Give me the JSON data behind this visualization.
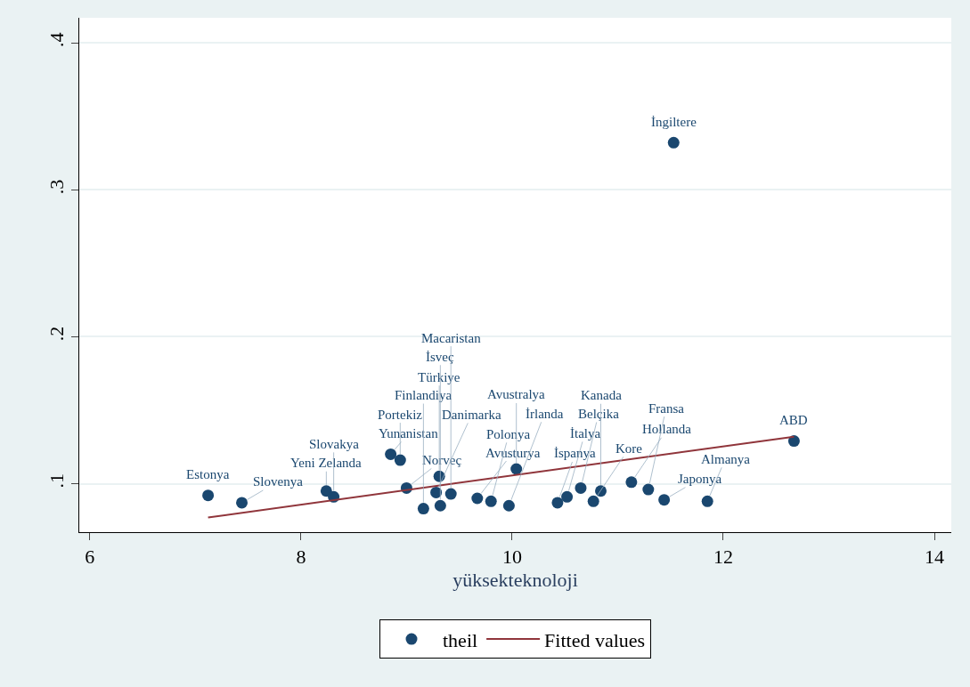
{
  "chart_data": {
    "type": "scatter",
    "xlabel": "yüksekteknoloji",
    "xlim": [
      5.9,
      14.16
    ],
    "xticks": [
      6,
      8,
      10,
      12,
      14
    ],
    "ylim": [
      0.067,
      0.417
    ],
    "yticks": [
      {
        "value": 0.1,
        "label": ".1"
      },
      {
        "value": 0.2,
        "label": ".2"
      },
      {
        "value": 0.3,
        "label": ".3"
      },
      {
        "value": 0.4,
        "label": ".4"
      }
    ],
    "grid": "y",
    "legend": "bottom",
    "series": [
      {
        "name": "theil",
        "marker": "circle",
        "color": "#1a476f",
        "x": [
          7.12,
          7.44,
          8.24,
          8.31,
          8.85,
          8.94,
          9.31,
          9.0,
          9.28,
          9.16,
          9.42,
          9.32,
          9.67,
          9.8,
          9.97,
          10.04,
          10.43,
          10.52,
          10.65,
          10.77,
          10.84,
          11.13,
          11.29,
          11.44,
          11.53,
          11.85,
          12.67
        ],
        "values": [
          0.092,
          0.087,
          0.095,
          0.091,
          0.12,
          0.116,
          0.105,
          0.097,
          0.094,
          0.083,
          0.093,
          0.085,
          0.09,
          0.088,
          0.085,
          0.11,
          0.087,
          0.091,
          0.097,
          0.088,
          0.095,
          0.101,
          0.096,
          0.089,
          0.332,
          0.088,
          0.129
        ]
      },
      {
        "name": "Fitted values",
        "type": "line",
        "color": "#90353b",
        "x": [
          7.12,
          12.67
        ],
        "values": [
          0.077,
          0.132
        ]
      }
    ],
    "annotations": [
      {
        "text": "Estonya",
        "x": 7.12,
        "y": 0.092
      },
      {
        "text": "Slovenya",
        "x": 7.44,
        "y": 0.087
      },
      {
        "text": "Yeni Zelanda",
        "x": 8.24,
        "y": 0.095
      },
      {
        "text": "Slovakya",
        "x": 8.31,
        "y": 0.091
      },
      {
        "text": "Yunanistan",
        "x": 8.85,
        "y": 0.12
      },
      {
        "text": "Portekiz",
        "x": 8.94,
        "y": 0.116
      },
      {
        "text": "Türkiye",
        "x": 9.31,
        "y": 0.105
      },
      {
        "text": "Norveç",
        "x": 9.0,
        "y": 0.097
      },
      {
        "text": "Danimarka",
        "x": 9.28,
        "y": 0.094
      },
      {
        "text": "Finlandiya",
        "x": 9.16,
        "y": 0.083
      },
      {
        "text": "Macaristan",
        "x": 9.42,
        "y": 0.093
      },
      {
        "text": "İsveç",
        "x": 9.32,
        "y": 0.085
      },
      {
        "text": "Avusturya",
        "x": 9.67,
        "y": 0.09
      },
      {
        "text": "Polonya",
        "x": 9.8,
        "y": 0.088
      },
      {
        "text": "İrlanda",
        "x": 9.97,
        "y": 0.085
      },
      {
        "text": "Avustralya",
        "x": 10.04,
        "y": 0.11
      },
      {
        "text": "İspanya",
        "x": 10.43,
        "y": 0.087
      },
      {
        "text": "İtalya",
        "x": 10.52,
        "y": 0.091
      },
      {
        "text": "Belçika",
        "x": 10.65,
        "y": 0.097
      },
      {
        "text": "Kore",
        "x": 10.77,
        "y": 0.088
      },
      {
        "text": "Kanada",
        "x": 10.84,
        "y": 0.095
      },
      {
        "text": "Hollanda",
        "x": 11.13,
        "y": 0.101
      },
      {
        "text": "Fransa",
        "x": 11.29,
        "y": 0.096
      },
      {
        "text": "Japonya",
        "x": 11.44,
        "y": 0.089
      },
      {
        "text": "İngiltere",
        "x": 11.53,
        "y": 0.332
      },
      {
        "text": "Almanya",
        "x": 11.85,
        "y": 0.088
      },
      {
        "text": "ABD",
        "x": 12.67,
        "y": 0.129
      }
    ]
  }
}
